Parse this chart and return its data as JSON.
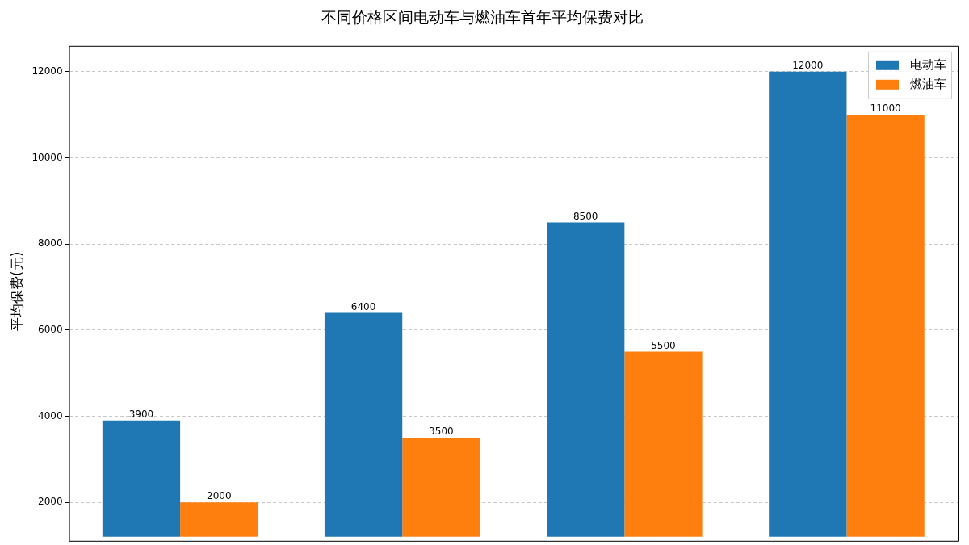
{
  "chart_data": {
    "type": "bar",
    "title": "不同价格区间电动车与燃油车首年平均保费对比",
    "ylabel": "平均保费(元)",
    "categories": [
      null,
      null,
      null,
      null
    ],
    "series": [
      {
        "name": "电动车",
        "color": "#1f77b4",
        "values": [
          3900,
          6400,
          8500,
          12000
        ]
      },
      {
        "name": "燃油车",
        "color": "#ff7f0e",
        "values": [
          2000,
          3500,
          5500,
          11000
        ]
      }
    ],
    "ylim": [
      1200,
      12600
    ],
    "yticks": [
      2000,
      4000,
      6000,
      8000,
      10000,
      12000
    ],
    "grid": "y",
    "legend": "top right",
    "data_labels": true
  }
}
